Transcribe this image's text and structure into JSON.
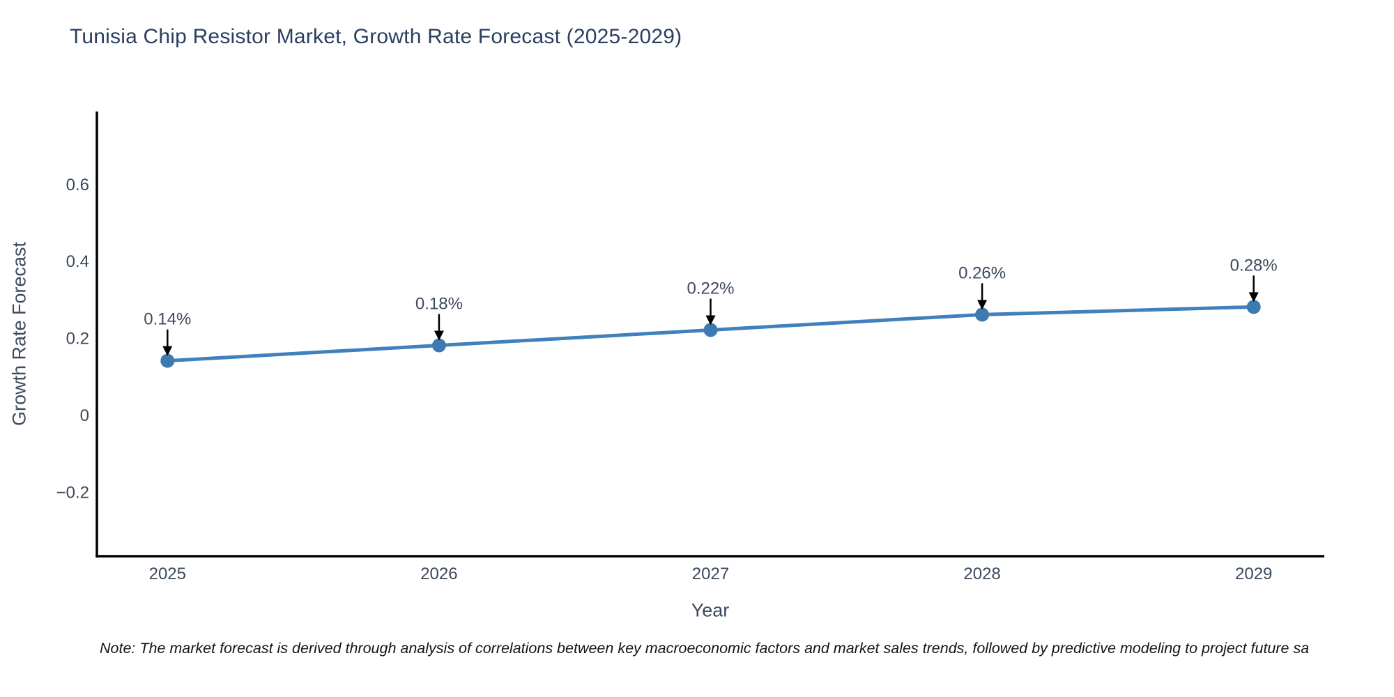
{
  "page": {
    "background": "#ffffff"
  },
  "chart_data": {
    "type": "line",
    "title": "Tunisia Chip Resistor Market, Growth Rate Forecast (2025-2029)",
    "xlabel": "Year",
    "ylabel": "Growth Rate Forecast",
    "categories": [
      "2025",
      "2026",
      "2027",
      "2028",
      "2029"
    ],
    "x": [
      2025,
      2026,
      2027,
      2028,
      2029
    ],
    "values": [
      0.14,
      0.18,
      0.22,
      0.26,
      0.28
    ],
    "point_labels": [
      "0.14%",
      "0.18%",
      "0.22%",
      "0.26%",
      "0.28%"
    ],
    "y_ticks": [
      0.6,
      0.4,
      0.2,
      0,
      -0.2
    ],
    "y_tick_labels": [
      "0.6",
      "0.4",
      "0.2",
      "0",
      "−0.2"
    ],
    "xlim": [
      2024.74,
      2029.26
    ],
    "ylim": [
      -0.368,
      0.788
    ],
    "grid": false,
    "legend_position": "none",
    "annotations_have_arrows": true,
    "note": "Note: The market forecast is derived through analysis of correlations between key macroeconomic factors and market sales trends, followed by predictive modeling to project future sa",
    "colors": {
      "line": "#4080bd",
      "marker": "#3d7ab1",
      "arrow": "#000000",
      "axis": "#000000",
      "title_text": "#2a3f5f",
      "tick_text": "#3d4a5c",
      "label_text": "#3d4a5c",
      "note_text": "#141414"
    }
  }
}
